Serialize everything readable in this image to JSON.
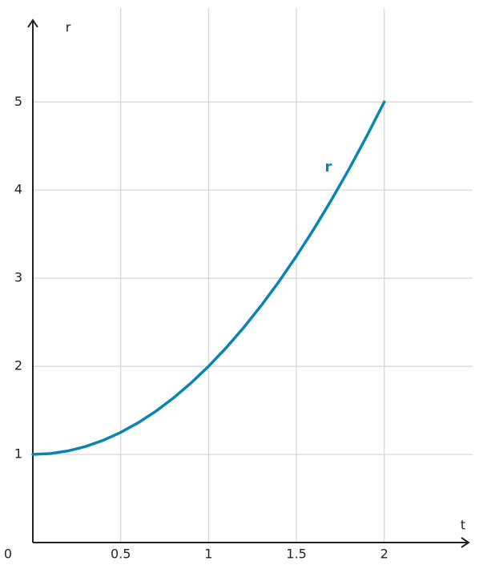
{
  "chart_data": {
    "type": "line",
    "x_label": "t",
    "y_label": "r",
    "x": [
      0,
      0.1,
      0.2,
      0.3,
      0.4,
      0.5,
      0.6,
      0.7,
      0.8,
      0.9,
      1,
      1.1,
      1.2,
      1.3,
      1.4,
      1.5,
      1.6,
      1.7,
      1.8,
      1.9,
      2
    ],
    "series": [
      {
        "name": "r",
        "color": "#0a84b0",
        "values": [
          1,
          1.01,
          1.04,
          1.09,
          1.16,
          1.25,
          1.36,
          1.49,
          1.64,
          1.81,
          2,
          2.21,
          2.44,
          2.69,
          2.96,
          3.25,
          3.56,
          3.89,
          4.24,
          4.61,
          5
        ]
      }
    ],
    "xlim": [
      0,
      2.48
    ],
    "ylim": [
      0,
      5.93
    ],
    "xticks": [
      0,
      0.5,
      1,
      1.5,
      2
    ],
    "yticks": [
      1,
      2,
      3,
      4,
      5
    ],
    "grid": true
  }
}
